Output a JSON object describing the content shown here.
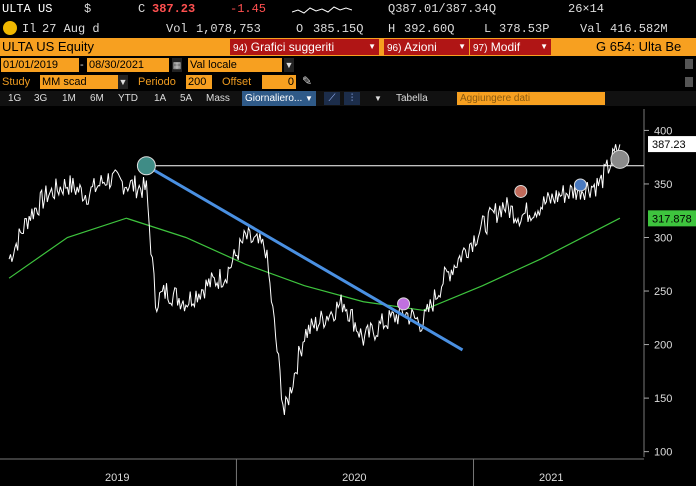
{
  "quote": {
    "ticker": "ULTA US",
    "currency": "$",
    "last_label": "C",
    "last": "387.23",
    "change": "-1.45",
    "bid_ask": "Q387.01/387.34Q",
    "size": "26×14",
    "icon_label": "Il",
    "date": "27 Aug d",
    "vol_label": "Vol",
    "volume": "1,078,753",
    "open_label": "O",
    "open": "385.15Q",
    "high_label": "H",
    "high": "392.60Q",
    "low_label": "L",
    "low": "378.53P",
    "val_label": "Val",
    "value": "416.582M"
  },
  "command": {
    "security": "ULTA US Equity",
    "buttons": [
      {
        "num": "94)",
        "label": "Grafici suggeriti"
      },
      {
        "num": "96)",
        "label": "Azioni"
      },
      {
        "num": "97)",
        "label": "Modif"
      }
    ],
    "page_title": "G 654: Ulta Be"
  },
  "filters": {
    "date_range": "01/01/2019",
    "date_end": "08/30/2021",
    "currency_mode": "Val locale",
    "study_label": "Study",
    "study_value": "MM scad",
    "period_label": "Periodo",
    "period_value": "200",
    "offset_label": "Offset",
    "offset_value": "0"
  },
  "tabs": {
    "ranges": [
      "1G",
      "3G",
      "1M",
      "6M",
      "YTD",
      "1A",
      "5A",
      "Mass"
    ],
    "frequency": "Giornaliero",
    "table": "Tabella",
    "add_data": "Aggiungere dati"
  },
  "chart_data": {
    "type": "line",
    "x_ticks": [
      "2019",
      "2020",
      "2021"
    ],
    "y_ticks": [
      100,
      150,
      200,
      250,
      300,
      350,
      400
    ],
    "ylim": [
      95,
      420
    ],
    "price_label": "387.23",
    "ma_label": "317.878",
    "colors": {
      "price": "#ffffff",
      "ma": "#3ec43e",
      "trend": "#4a90e2",
      "resistance": "#ffffff"
    },
    "price": [
      {
        "x": "2019-01",
        "y": 280
      },
      {
        "x": "2019-02",
        "y": 320
      },
      {
        "x": "2019-03",
        "y": 340
      },
      {
        "x": "2019-04",
        "y": 350
      },
      {
        "x": "2019-05",
        "y": 340
      },
      {
        "x": "2019-06",
        "y": 355
      },
      {
        "x": "2019-07",
        "y": 350
      },
      {
        "x": "2019-08",
        "y": 345
      },
      {
        "x": "2019-08-29",
        "y": 240
      },
      {
        "x": "2019-09",
        "y": 250
      },
      {
        "x": "2019-10",
        "y": 240
      },
      {
        "x": "2019-11",
        "y": 255
      },
      {
        "x": "2019-12",
        "y": 265
      },
      {
        "x": "2020-01",
        "y": 300
      },
      {
        "x": "2020-02",
        "y": 290
      },
      {
        "x": "2020-03",
        "y": 135
      },
      {
        "x": "2020-04",
        "y": 210
      },
      {
        "x": "2020-05",
        "y": 225
      },
      {
        "x": "2020-06",
        "y": 240
      },
      {
        "x": "2020-07",
        "y": 205
      },
      {
        "x": "2020-08",
        "y": 220
      },
      {
        "x": "2020-09",
        "y": 230
      },
      {
        "x": "2020-10",
        "y": 220
      },
      {
        "x": "2020-11",
        "y": 260
      },
      {
        "x": "2020-12",
        "y": 285
      },
      {
        "x": "2021-01",
        "y": 310
      },
      {
        "x": "2021-02",
        "y": 330
      },
      {
        "x": "2021-03",
        "y": 320
      },
      {
        "x": "2021-04",
        "y": 330
      },
      {
        "x": "2021-05",
        "y": 340
      },
      {
        "x": "2021-06",
        "y": 345
      },
      {
        "x": "2021-07",
        "y": 350
      },
      {
        "x": "2021-08",
        "y": 387
      }
    ],
    "moving_average": [
      {
        "x": "2019-01",
        "y": 262
      },
      {
        "x": "2019-04",
        "y": 300
      },
      {
        "x": "2019-07",
        "y": 318
      },
      {
        "x": "2019-10",
        "y": 300
      },
      {
        "x": "2020-01",
        "y": 275
      },
      {
        "x": "2020-04",
        "y": 255
      },
      {
        "x": "2020-07",
        "y": 240
      },
      {
        "x": "2020-10",
        "y": 232
      },
      {
        "x": "2021-01",
        "y": 255
      },
      {
        "x": "2021-04",
        "y": 280
      },
      {
        "x": "2021-08",
        "y": 318
      }
    ],
    "trendline": [
      {
        "x": "2019-08",
        "y": 367
      },
      {
        "x": "2020-12",
        "y": 195
      }
    ],
    "resistance": 367,
    "markers": [
      {
        "x": "2019-08",
        "y": 367,
        "color": "#3f8c86"
      },
      {
        "x": "2020-09",
        "y": 238,
        "color": "#c070e0"
      },
      {
        "x": "2021-03",
        "y": 343,
        "color": "#c06a5a"
      },
      {
        "x": "2021-06",
        "y": 349,
        "color": "#4a7ac0"
      },
      {
        "x": "2021-08",
        "y": 373,
        "color": "#8a8a8a"
      }
    ]
  }
}
